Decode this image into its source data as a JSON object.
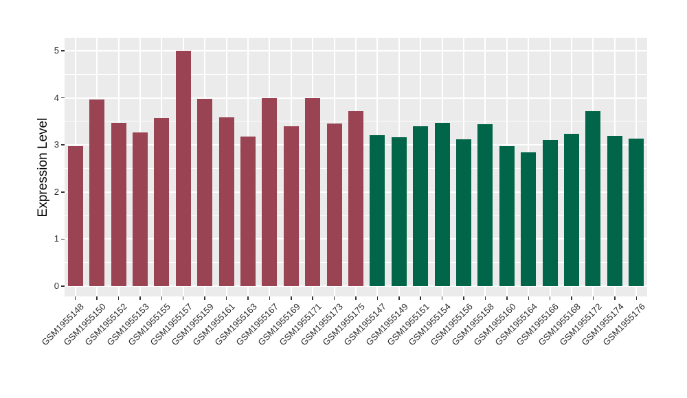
{
  "chart_data": {
    "type": "bar",
    "title": "",
    "xlabel": "",
    "ylabel": "Expression Level",
    "ylim": [
      0,
      5.25
    ],
    "yticks": [
      0,
      1,
      2,
      3,
      4,
      5
    ],
    "minor_yticks": [
      0.5,
      1.5,
      2.5,
      3.5,
      4.5
    ],
    "grid": "on",
    "legend_position": "none",
    "panel_background": "#EBEBEB",
    "gridline_color": "#FFFFFF",
    "tick_color": "#333333",
    "text_color": "#2b2b2b",
    "group_colors": {
      "group1": "#9A4352",
      "group2": "#016649"
    },
    "bars": [
      {
        "label": "GSM1955148",
        "value": 2.97,
        "group": "group1"
      },
      {
        "label": "GSM1955150",
        "value": 3.97,
        "group": "group1"
      },
      {
        "label": "GSM1955152",
        "value": 3.47,
        "group": "group1"
      },
      {
        "label": "GSM1955153",
        "value": 3.27,
        "group": "group1"
      },
      {
        "label": "GSM1955155",
        "value": 3.57,
        "group": "group1"
      },
      {
        "label": "GSM1955157",
        "value": 5.0,
        "group": "group1"
      },
      {
        "label": "GSM1955159",
        "value": 3.98,
        "group": "group1"
      },
      {
        "label": "GSM1955161",
        "value": 3.59,
        "group": "group1"
      },
      {
        "label": "GSM1955163",
        "value": 3.18,
        "group": "group1"
      },
      {
        "label": "GSM1955167",
        "value": 4.0,
        "group": "group1"
      },
      {
        "label": "GSM1955169",
        "value": 3.4,
        "group": "group1"
      },
      {
        "label": "GSM1955171",
        "value": 4.0,
        "group": "group1"
      },
      {
        "label": "GSM1955173",
        "value": 3.46,
        "group": "group1"
      },
      {
        "label": "GSM1955175",
        "value": 3.72,
        "group": "group1"
      },
      {
        "label": "GSM1955147",
        "value": 3.21,
        "group": "group2"
      },
      {
        "label": "GSM1955149",
        "value": 3.16,
        "group": "group2"
      },
      {
        "label": "GSM1955151",
        "value": 3.4,
        "group": "group2"
      },
      {
        "label": "GSM1955154",
        "value": 3.47,
        "group": "group2"
      },
      {
        "label": "GSM1955156",
        "value": 3.12,
        "group": "group2"
      },
      {
        "label": "GSM1955158",
        "value": 3.44,
        "group": "group2"
      },
      {
        "label": "GSM1955160",
        "value": 2.98,
        "group": "group2"
      },
      {
        "label": "GSM1955164",
        "value": 2.84,
        "group": "group2"
      },
      {
        "label": "GSM1955166",
        "value": 3.11,
        "group": "group2"
      },
      {
        "label": "GSM1955168",
        "value": 3.24,
        "group": "group2"
      },
      {
        "label": "GSM1955172",
        "value": 3.72,
        "group": "group2"
      },
      {
        "label": "GSM1955174",
        "value": 3.19,
        "group": "group2"
      },
      {
        "label": "GSM1955176",
        "value": 3.13,
        "group": "group2"
      }
    ]
  }
}
